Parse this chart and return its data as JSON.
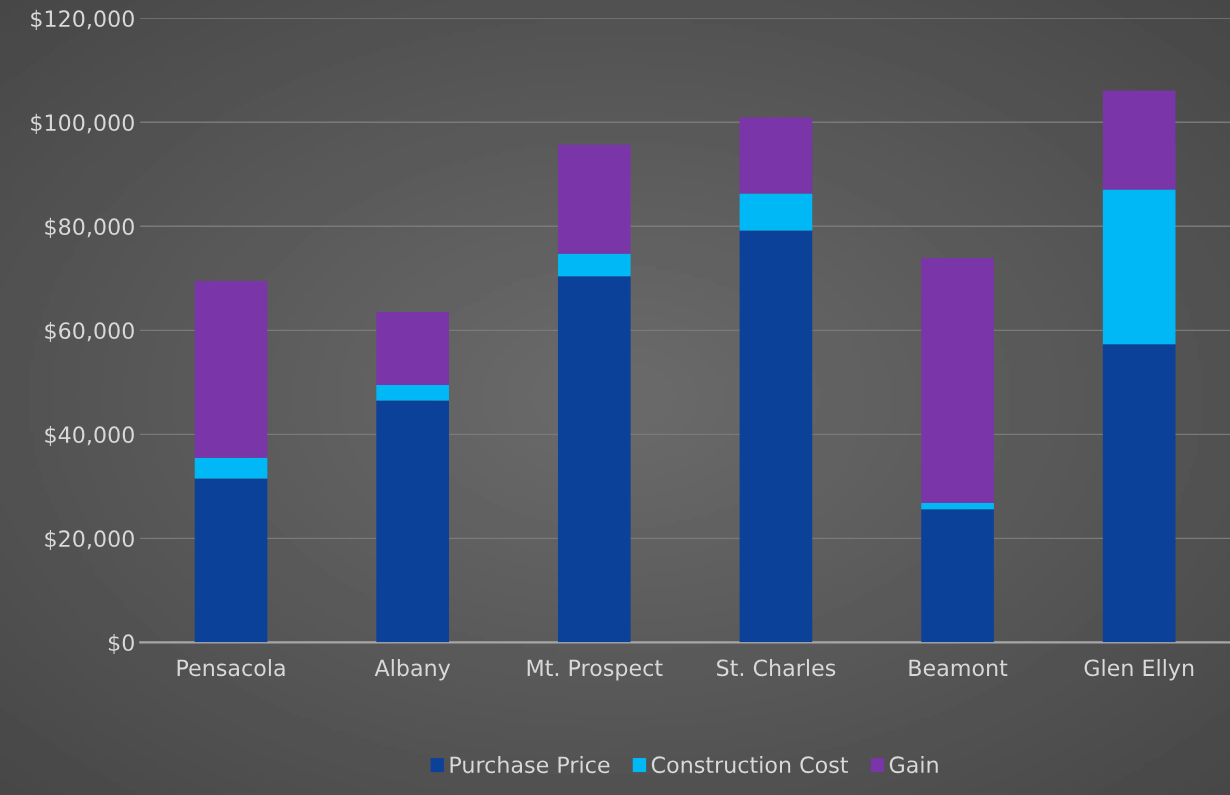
{
  "chart_data": {
    "type": "bar",
    "stacked": true,
    "categories": [
      "Pensacola",
      "Albany",
      "Mt. Prospect",
      "St. Charles",
      "Beamont",
      "Glen Ellyn"
    ],
    "series": [
      {
        "name": "Purchase Price",
        "color": "#0c419a",
        "values": [
          31500,
          46500,
          70400,
          79200,
          25600,
          57300
        ]
      },
      {
        "name": "Construction Cost",
        "color": "#00b8f5",
        "values": [
          4000,
          3000,
          4300,
          7100,
          1200,
          29800
        ]
      },
      {
        "name": "Gain",
        "color": "#7a36a8",
        "values": [
          34000,
          14000,
          21000,
          14600,
          47100,
          19000
        ]
      }
    ],
    "ylim": [
      0,
      120000
    ],
    "yticks": [
      {
        "value": 0,
        "label": "$0"
      },
      {
        "value": 20000,
        "label": "$20,000"
      },
      {
        "value": 40000,
        "label": "$40,000"
      },
      {
        "value": 60000,
        "label": "$60,000"
      },
      {
        "value": 80000,
        "label": "$80,000"
      },
      {
        "value": 100000,
        "label": "$100,000"
      },
      {
        "value": 120000,
        "label": "$120,000"
      }
    ],
    "grid": "y",
    "legend": "bottom"
  }
}
